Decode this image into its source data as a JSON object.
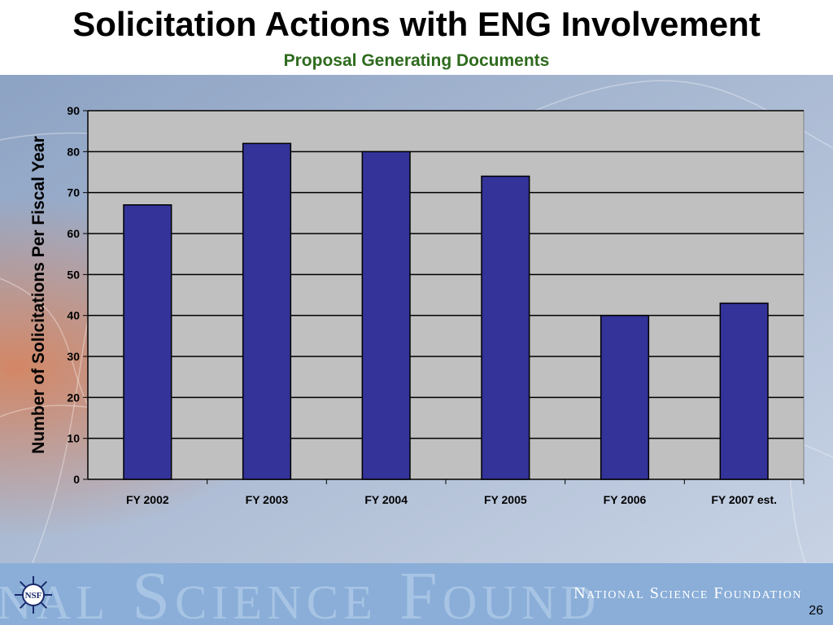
{
  "title": "Solicitation Actions with ENG Involvement",
  "subtitle": "Proposal Generating Documents",
  "footer": {
    "watermark": "nal Science Found",
    "org_name": "National Science Foundation",
    "logo_text": "NSF",
    "page_number": "26"
  },
  "colors": {
    "bar_fill": "#333399",
    "plot_bg": "#c0c0c0",
    "subtitle": "#2e6b1e",
    "footer_band": "#8aaed8"
  },
  "chart_data": {
    "type": "bar",
    "title": "",
    "xlabel": "",
    "ylabel": "Number of Solicitations Per Fiscal Year",
    "categories": [
      "FY 2002",
      "FY 2003",
      "FY 2004",
      "FY 2005",
      "FY 2006",
      "FY 2007 est."
    ],
    "values": [
      67,
      82,
      80,
      74,
      40,
      43
    ],
    "ylim": [
      0,
      90
    ],
    "yticks": [
      "0",
      "10",
      "20",
      "30",
      "40",
      "50",
      "60",
      "70",
      "80",
      "90"
    ],
    "grid": true,
    "legend": "none"
  }
}
